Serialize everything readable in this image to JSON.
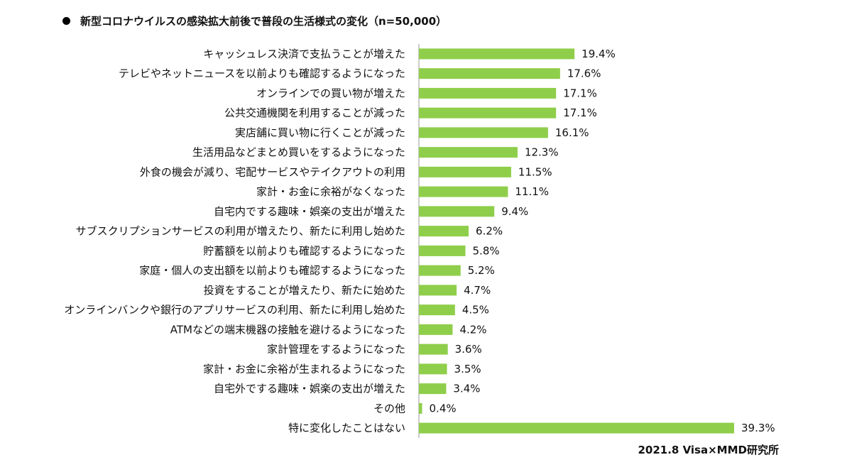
{
  "chart_data": {
    "type": "bar",
    "orientation": "horizontal",
    "title": "新型コロナウイルスの感染拡大前後で普段の生活様式の変化（n=50,000）",
    "source": "2021.8 Visa×MMD研究所",
    "bar_color": "#8fce4a",
    "axis_color": "#999999",
    "xlim": [
      0,
      40
    ],
    "grid": false,
    "legend": "none",
    "categories": [
      "キャッシュレス決済で支払うことが増えた",
      "テレビやネットニュースを以前よりも確認するようになった",
      "オンラインでの買い物が増えた",
      "公共交通機関を利用することが減った",
      "実店舗に買い物に行くことが減った",
      "生活用品などまとめ買いをするようになった",
      "外食の機会が減り、宅配サービスやテイクアウトの利用",
      "家計・お金に余裕がなくなった",
      "自宅内でする趣味・娯楽の支出が増えた",
      "サブスクリプションサービスの利用が増えたり、新たに利用し始めた",
      "貯蓄額を以前よりも確認するようになった",
      "家庭・個人の支出額を以前よりも確認するようになった",
      "投資をすることが増えたり、新たに始めた",
      "オンラインバンクや銀行のアプリサービスの利用、新たに利用し始めた",
      "ATMなどの端末機器の接触を避けるようになった",
      "家計管理をするようになった",
      "家計・お金に余裕が生まれるようになった",
      "自宅外でする趣味・娯楽の支出が増えた",
      "その他",
      "特に変化したことはない"
    ],
    "values": [
      19.4,
      17.6,
      17.1,
      17.1,
      16.1,
      12.3,
      11.5,
      11.1,
      9.4,
      6.2,
      5.8,
      5.2,
      4.7,
      4.5,
      4.2,
      3.6,
      3.5,
      3.4,
      0.4,
      39.3
    ],
    "value_labels": [
      "19.4%",
      "17.6%",
      "17.1%",
      "17.1%",
      "16.1%",
      "12.3%",
      "11.5%",
      "11.1%",
      "9.4%",
      "6.2%",
      "5.8%",
      "5.2%",
      "4.7%",
      "4.5%",
      "4.2%",
      "3.6%",
      "3.5%",
      "3.4%",
      "0.4%",
      "39.3%"
    ]
  }
}
